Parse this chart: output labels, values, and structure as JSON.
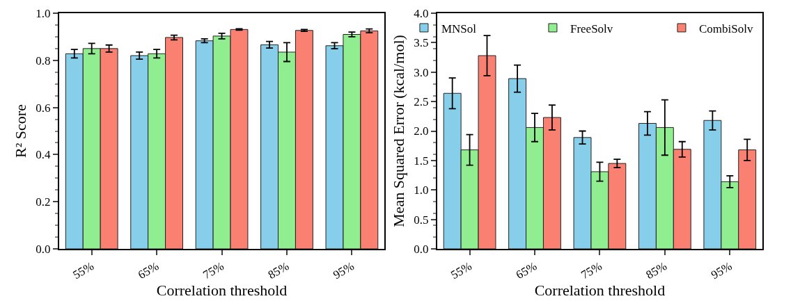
{
  "chart_data": [
    {
      "type": "bar",
      "xlabel": "Correlation threshold",
      "ylabel": "R² Score",
      "categories": [
        "55%",
        "65%",
        "75%",
        "85%",
        "95%"
      ],
      "ylim": [
        0,
        1
      ],
      "yticks": [
        {
          "value": 0,
          "label": "0.0"
        },
        0.2,
        0.4,
        0.6,
        0.8,
        {
          "value": 1,
          "label": "1.0"
        }
      ],
      "legend": false,
      "series": [
        {
          "color": "#87ceeb",
          "values": [
            0.828,
            0.82,
            0.883,
            0.866,
            0.862
          ],
          "errors": [
            0.018,
            0.015,
            0.008,
            0.014,
            0.013
          ]
        },
        {
          "color": "#90ee90",
          "values": [
            0.85,
            0.828,
            0.903,
            0.835,
            0.91
          ],
          "errors": [
            0.022,
            0.018,
            0.012,
            0.04,
            0.01
          ]
        },
        {
          "color": "#fa8072",
          "values": [
            0.85,
            0.897,
            0.931,
            0.927,
            0.925
          ],
          "errors": [
            0.015,
            0.01,
            0.003,
            0.004,
            0.008
          ]
        }
      ]
    },
    {
      "type": "bar",
      "xlabel": "Correlation threshold",
      "ylabel": "Mean Squared Error (kcal/mol)",
      "categories": [
        "55%",
        "65%",
        "75%",
        "85%",
        "95%"
      ],
      "ylim": [
        0,
        4
      ],
      "yticks": [
        {
          "value": 0,
          "label": "0.0"
        },
        0.5,
        {
          "value": 1,
          "label": "1.0"
        },
        1.5,
        {
          "value": 2,
          "label": "2.0"
        },
        2.5,
        {
          "value": 3,
          "label": "3.0"
        },
        3.5,
        {
          "value": 4,
          "label": "4.0"
        }
      ],
      "legend": "top",
      "series": [
        {
          "name": "MNSol",
          "color": "#87ceeb",
          "values": [
            2.64,
            2.89,
            1.89,
            2.13,
            2.18
          ],
          "errors": [
            0.26,
            0.23,
            0.11,
            0.2,
            0.16
          ]
        },
        {
          "name": "FreeSolv",
          "color": "#90ee90",
          "values": [
            1.68,
            2.06,
            1.31,
            2.06,
            1.14
          ],
          "errors": [
            0.26,
            0.24,
            0.16,
            0.47,
            0.1
          ]
        },
        {
          "name": "CombiSolv",
          "color": "#fa8072",
          "values": [
            3.28,
            2.23,
            1.45,
            1.69,
            1.68
          ],
          "errors": [
            0.34,
            0.21,
            0.07,
            0.13,
            0.18
          ]
        }
      ]
    }
  ]
}
